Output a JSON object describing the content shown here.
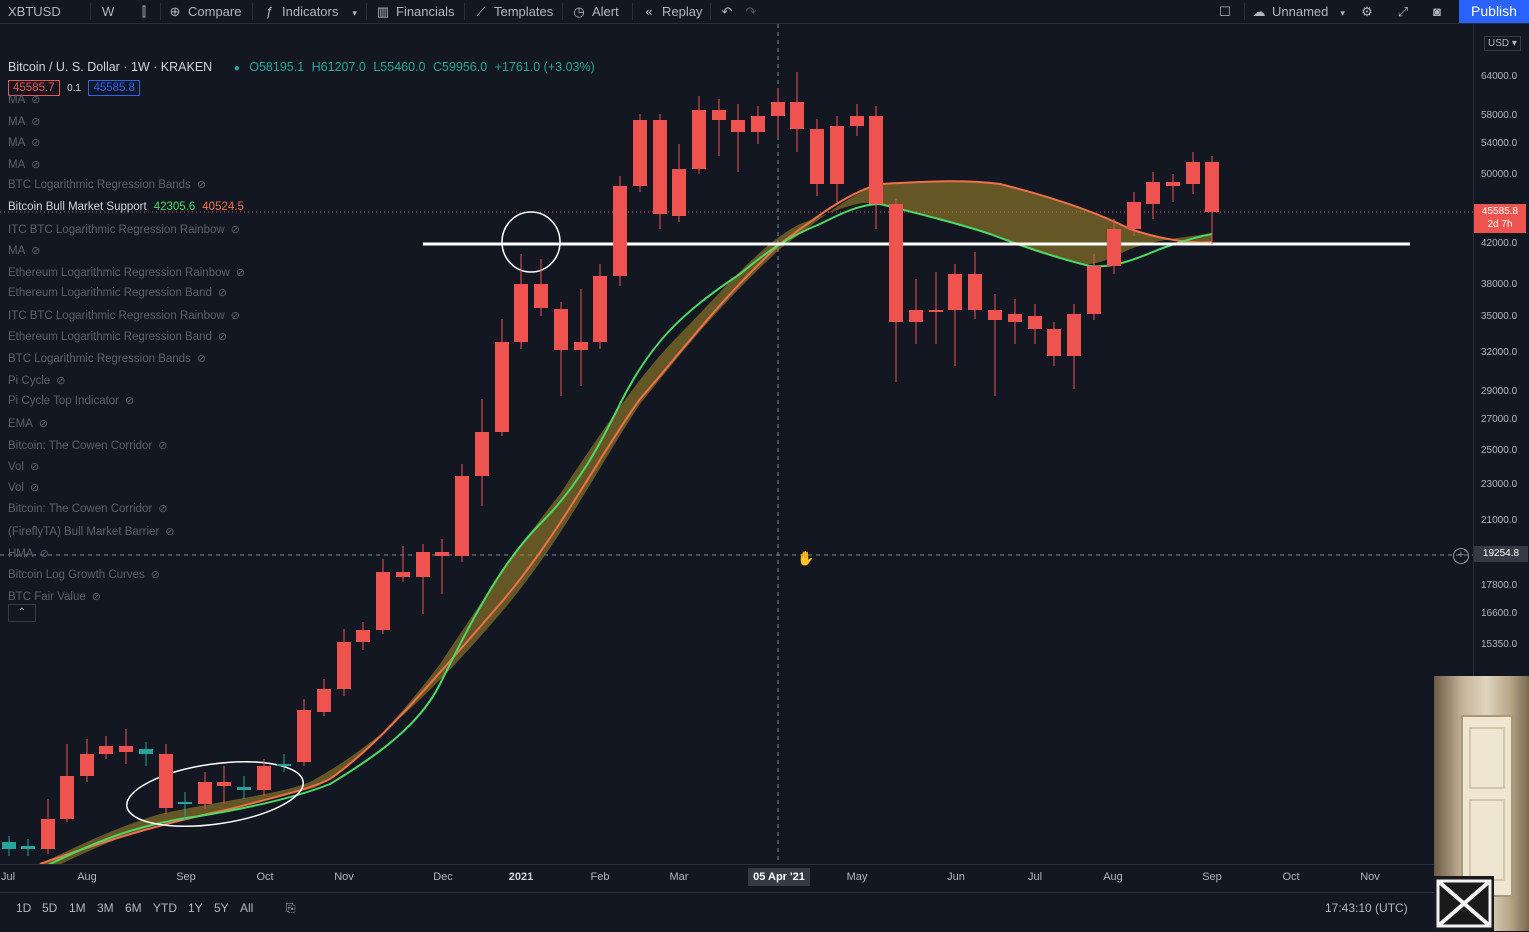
{
  "toolbar": {
    "symbol": "XBTUSD",
    "interval": "W",
    "compare": "Compare",
    "indicators": "Indicators",
    "financials": "Financials",
    "templates": "Templates",
    "alert": "Alert",
    "replay": "Replay",
    "layout_name": "Unnamed",
    "publish": "Publish"
  },
  "legend": {
    "title": "Bitcoin / U. S. Dollar · 1W · KRAKEN",
    "open": "O58195.1",
    "high": "H61207.0",
    "low": "L55460.0",
    "close": "C59956.0",
    "change": "+1761.0 (+3.03%)",
    "bid": "45585.7",
    "spread": "0.1",
    "ask": "45585.8"
  },
  "indicators": [
    {
      "name": "MA",
      "values": [],
      "hidden": true
    },
    {
      "name": "MA",
      "values": [],
      "hidden": true
    },
    {
      "name": "MA",
      "values": [],
      "hidden": true
    },
    {
      "name": "MA",
      "values": [],
      "hidden": true
    },
    {
      "name": "BTC Logarithmic Regression Bands",
      "values": [],
      "hidden": true
    },
    {
      "name": "Bitcoin Bull Market Support",
      "values": [
        "42305.6",
        "40524.5"
      ],
      "hidden": false
    },
    {
      "name": "ITC BTC Logarithmic Regression Rainbow",
      "values": [],
      "hidden": true
    },
    {
      "name": "MA",
      "values": [],
      "hidden": true
    },
    {
      "name": "Ethereum Logarithmic Regression Rainbow",
      "values": [],
      "hidden": true
    },
    {
      "name": "Ethereum Logarithmic Regression Band",
      "values": [],
      "hidden": true
    },
    {
      "name": "ITC BTC Logarithmic Regression Rainbow",
      "values": [],
      "hidden": true
    },
    {
      "name": "Ethereum Logarithmic Regression Band",
      "values": [],
      "hidden": true
    },
    {
      "name": "BTC Logarithmic Regression Bands",
      "values": [],
      "hidden": true
    },
    {
      "name": "Pi Cycle",
      "values": [],
      "hidden": true
    },
    {
      "name": "Pi Cycle Top Indicator",
      "values": [],
      "hidden": true
    },
    {
      "name": "EMA",
      "values": [],
      "hidden": true
    },
    {
      "name": "Bitcoin: The Cowen Corridor",
      "values": [],
      "hidden": true
    },
    {
      "name": "Vol",
      "values": [],
      "hidden": true
    },
    {
      "name": "Vol",
      "values": [],
      "hidden": true
    },
    {
      "name": "Bitcoin: The Cowen Corridor",
      "values": [],
      "hidden": true
    },
    {
      "name": "(FireflyTA) Bull Market Barrier",
      "values": [],
      "hidden": true
    },
    {
      "name": "HMA",
      "values": [],
      "hidden": true
    },
    {
      "name": "Bitcoin Log Growth Curves",
      "values": [],
      "hidden": true
    },
    {
      "name": "BTC Fair Value",
      "values": [],
      "hidden": true
    }
  ],
  "price_axis": {
    "currency": "USD",
    "ticks": [
      "64000.0",
      "58000.0",
      "54000.0",
      "50000.0",
      "42000.0",
      "38000.0",
      "35000.0",
      "32000.0",
      "29000.0",
      "27000.0",
      "25000.0",
      "23000.0",
      "21000.0",
      "17800.0",
      "16600.0",
      "15350.0"
    ],
    "last_price": "45585.8",
    "countdown": "2d 7h",
    "crosshair_price": "19254.8"
  },
  "time_axis": {
    "ticks": [
      "Jul",
      "Aug",
      "Sep",
      "Oct",
      "Nov",
      "Dec",
      "2021",
      "Feb",
      "Mar",
      "May",
      "Jun",
      "Jul",
      "Aug",
      "Sep",
      "Oct",
      "Nov"
    ],
    "crosshair_label": "05 Apr '21"
  },
  "bottom_bar": {
    "ranges": [
      "1D",
      "5D",
      "1M",
      "3M",
      "6M",
      "YTD",
      "1Y",
      "5Y",
      "All"
    ],
    "clock": "17:43:10 (UTC)"
  },
  "colors": {
    "background": "#131722",
    "up": "#26a69a",
    "down": "#ef5350",
    "support_green": "#4caf50",
    "support_red": "#f0704a",
    "accent": "#2962ff"
  }
}
